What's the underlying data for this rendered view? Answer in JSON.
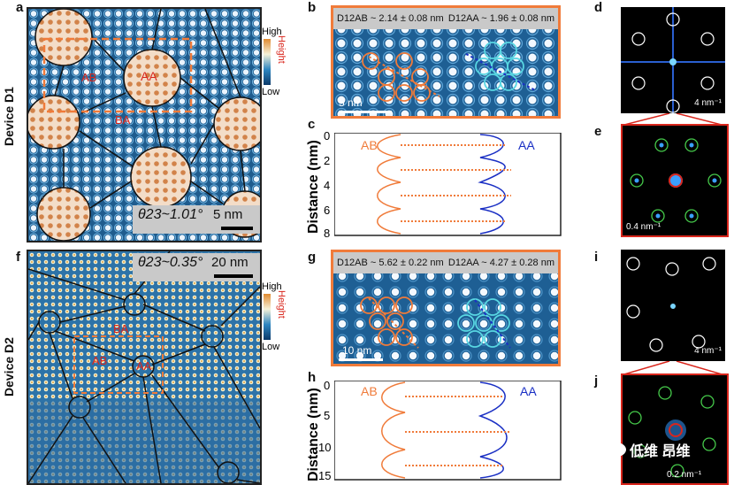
{
  "panels": {
    "a": "a",
    "b": "b",
    "c": "c",
    "d": "d",
    "e": "e",
    "f": "f",
    "g": "g",
    "h": "h",
    "i": "i",
    "j": "j"
  },
  "devices": {
    "d1": "Device D1",
    "d2": "Device D2"
  },
  "panel_a": {
    "theta": "θ23~1.01°",
    "scale": "5 nm",
    "label_ab": "AB",
    "label_aa": "AA",
    "label_ba": "BA",
    "legend_high": "High",
    "legend_low": "Low",
    "legend_title": "Height"
  },
  "panel_b": {
    "d_ab": "D12AB ~ 2.14 ± 0.08 nm",
    "d_aa": "D12AA ~ 1.96 ± 0.08 nm",
    "scale": "5 nm"
  },
  "panel_c": {
    "label_ab": "AB",
    "label_aa": "AA",
    "ylabel": "Distance (nm)",
    "ticks": [
      "0",
      "2",
      "4",
      "6",
      "8"
    ]
  },
  "panel_d": {
    "scale": "4 nm⁻¹"
  },
  "panel_e": {
    "scale": "0.4 nm⁻¹"
  },
  "panel_f": {
    "theta": "θ23~0.35°",
    "scale": "20 nm",
    "label_ab": "AB",
    "label_aa": "AA",
    "label_ba": "BA",
    "legend_high": "High",
    "legend_low": "Low",
    "legend_title": "Height"
  },
  "panel_g": {
    "d_ab": "D12AB ~ 5.62 ± 0.22 nm",
    "d_aa": "D12AA ~ 4.27 ± 0.28 nm",
    "scale": "10 nm"
  },
  "panel_h": {
    "label_ab": "AB",
    "label_aa": "AA",
    "ylabel": "Distance (nm)",
    "ticks": [
      "0",
      "5",
      "10",
      "15"
    ]
  },
  "panel_i": {
    "scale": "4 nm⁻¹"
  },
  "panel_j": {
    "scale": "0.2 nm⁻¹"
  },
  "watermark": "低维 昂维",
  "colors": {
    "orange": "#f07b3a",
    "blue": "#1a2fc4",
    "red": "#d9261c",
    "stm": "#1d5a8c"
  }
}
